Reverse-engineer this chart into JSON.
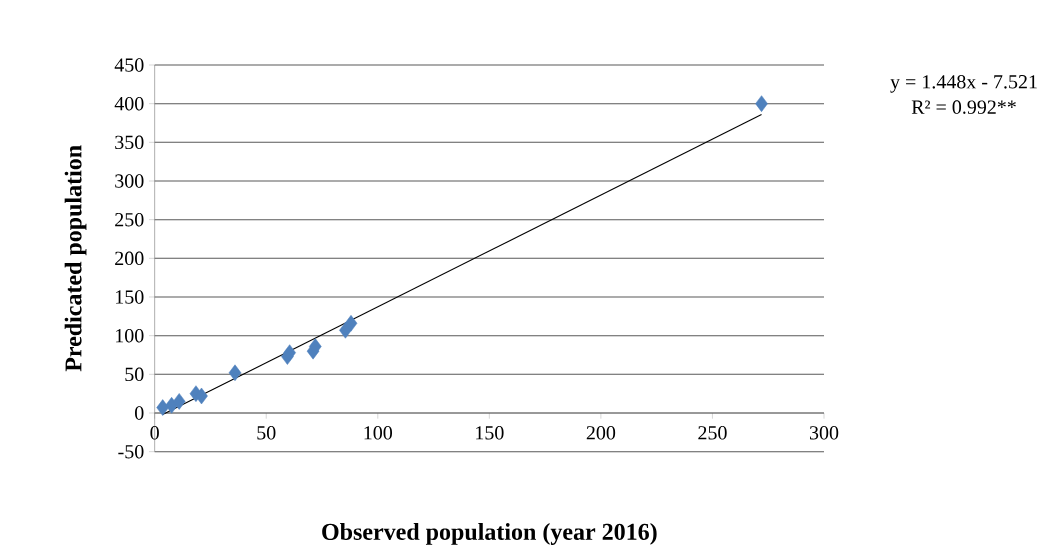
{
  "chart_data": {
    "type": "scatter",
    "xlabel": "Observed population (year 2016)",
    "ylabel": "Predicated population",
    "series": [
      {
        "color": "#4f81bd",
        "x": [
          3.6,
          7.6,
          11,
          18.5,
          21,
          36,
          59.5,
          60.5,
          71,
          72,
          85.5,
          88,
          272
        ],
        "values": [
          7,
          10,
          15,
          25,
          22,
          52,
          73,
          78,
          80,
          86,
          107,
          116,
          400
        ]
      },
      {
        "type": "line",
        "color": "#000000",
        "marker": "none",
        "x": [
          3.6,
          272
        ],
        "values": [
          -2,
          386
        ]
      }
    ],
    "annotations": [
      "y = 1.448x - 7.521",
      "R² = 0.992**"
    ],
    "xlim": [
      0,
      300
    ],
    "xticks": [
      0,
      50,
      100,
      150,
      200,
      250,
      300
    ],
    "ylim": [
      -50,
      450
    ],
    "yticks": [
      -50,
      0,
      50,
      100,
      150,
      200,
      250,
      300,
      350,
      400,
      450
    ],
    "grid": "y",
    "marker": "diamond"
  }
}
